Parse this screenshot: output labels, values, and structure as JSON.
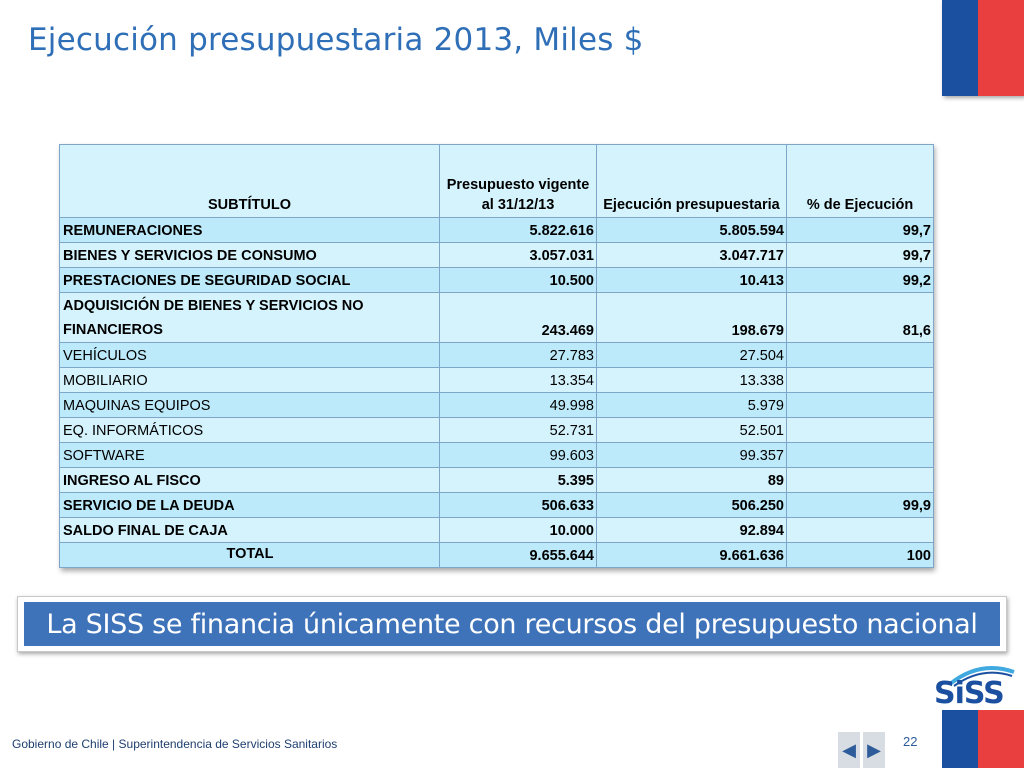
{
  "slide": {
    "title": "Ejecución presupuestaria 2013, Miles $",
    "callout": "La SISS se financia únicamente con recursos del presupuesto nacional",
    "footer": "Gobierno de Chile | Superintendencia de Servicios Sanitarios",
    "page_number": "22",
    "logo_text": "SiSS"
  },
  "nav": {
    "prev_icon": "◀",
    "next_icon": "▶"
  },
  "colors": {
    "title": "#2e6fb7",
    "callout_bg": "#3e73b9",
    "flag_blue": "#1b4fa0",
    "flag_red": "#ea3f3f",
    "row_light": "#d4f3fd",
    "row_dark": "#bdeafa"
  },
  "table": {
    "headers": {
      "subtitulo": "SUBTÍTULO",
      "presupuesto": "Presupuesto vigente al 31/12/13",
      "ejecucion": "Ejecución presupuestaria",
      "porcentaje": "% de Ejecución"
    },
    "rows": [
      {
        "label": "REMUNERACIONES",
        "presupuesto": "5.822.616",
        "ejecucion": "5.805.594",
        "porcentaje": "99,7"
      },
      {
        "label": "BIENES Y SERVICIOS DE CONSUMO",
        "presupuesto": "3.057.031",
        "ejecucion": "3.047.717",
        "porcentaje": "99,7"
      },
      {
        "label": "PRESTACIONES DE SEGURIDAD SOCIAL",
        "presupuesto": "10.500",
        "ejecucion": "10.413",
        "porcentaje": "99,2"
      },
      {
        "label": "ADQUISICIÓN DE BIENES Y SERVICIOS NO FINANCIEROS",
        "presupuesto": "243.469",
        "ejecucion": "198.679",
        "porcentaje": "81,6"
      },
      {
        "label": "VEHÍCULOS",
        "presupuesto": "27.783",
        "ejecucion": "27.504",
        "porcentaje": ""
      },
      {
        "label": "MOBILIARIO",
        "presupuesto": "13.354",
        "ejecucion": "13.338",
        "porcentaje": ""
      },
      {
        "label": "MAQUINAS EQUIPOS",
        "presupuesto": "49.998",
        "ejecucion": "5.979",
        "porcentaje": ""
      },
      {
        "label": "EQ. INFORMÁTICOS",
        "presupuesto": "52.731",
        "ejecucion": "52.501",
        "porcentaje": ""
      },
      {
        "label": "SOFTWARE",
        "presupuesto": "99.603",
        "ejecucion": "99.357",
        "porcentaje": ""
      },
      {
        "label": "INGRESO AL FISCO",
        "presupuesto": "5.395",
        "ejecucion": "89",
        "porcentaje": ""
      },
      {
        "label": "SERVICIO DE LA DEUDA",
        "presupuesto": "506.633",
        "ejecucion": "506.250",
        "porcentaje": "99,9"
      },
      {
        "label": "SALDO FINAL  DE CAJA",
        "presupuesto": "10.000",
        "ejecucion": "92.894",
        "porcentaje": ""
      },
      {
        "label": "TOTAL",
        "presupuesto": "9.655.644",
        "ejecucion": "9.661.636",
        "porcentaje": "100"
      }
    ]
  }
}
